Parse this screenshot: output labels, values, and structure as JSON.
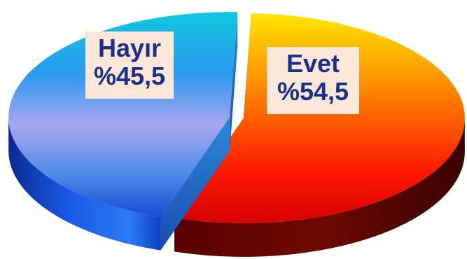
{
  "chart_data": {
    "type": "pie",
    "style": "3d-exploded",
    "title": "",
    "slices": [
      {
        "label": "Evet",
        "value": 54.5,
        "value_label": "%54,5",
        "color": "#e8300a"
      },
      {
        "label": "Hayır",
        "value": 45.5,
        "value_label": "%45,5",
        "color": "#2a6ae0"
      }
    ],
    "legend": "none"
  }
}
